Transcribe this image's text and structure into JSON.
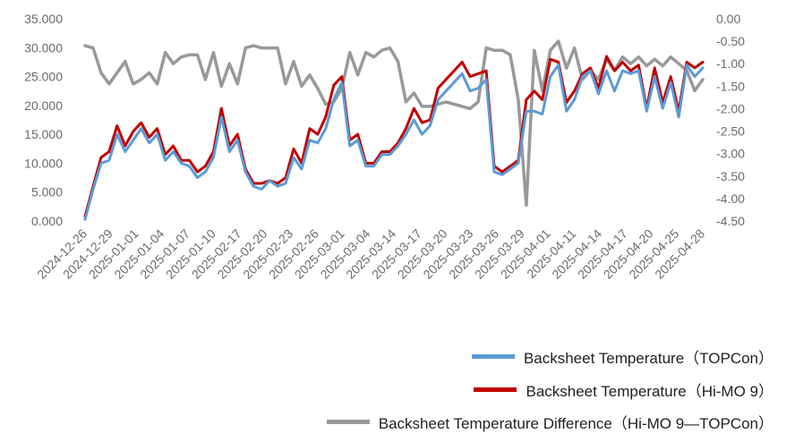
{
  "chart_data": {
    "type": "line",
    "title": "",
    "xlabel": "",
    "ylabel": "",
    "x_ticks": [
      "2024-12-26",
      "2024-12-29",
      "2025-01-01",
      "2025-01-04",
      "2025-01-07",
      "2025-01-10",
      "2025-02-17",
      "2025-02-20",
      "2025-02-23",
      "2025-02-26",
      "2025-03-01",
      "2025-03-04",
      "2025-03-14",
      "2025-03-17",
      "2025-03-20",
      "2025-03-23",
      "2025-03-26",
      "2025-03-29",
      "2025-04-01",
      "2025-04-11",
      "2025-04-14",
      "2025-04-17",
      "2025-04-20",
      "2025-04-25",
      "2025-04-28"
    ],
    "y_left": {
      "lim": [
        0,
        35
      ],
      "ticks": [
        "0.000",
        "5.000",
        "10.000",
        "15.000",
        "20.000",
        "25.000",
        "30.000",
        "35.000"
      ]
    },
    "y_right": {
      "lim": [
        -4.5,
        0
      ],
      "ticks": [
        "0.00",
        "-0.50",
        "-1.00",
        "-1.50",
        "-2.00",
        "-2.50",
        "-3.00",
        "-3.50",
        "-4.00",
        "-4.50"
      ]
    },
    "grid": false,
    "legend_position": "bottom-right",
    "series": [
      {
        "name": "Backsheet  Temperature（TOPCon）",
        "axis": "left",
        "color": "#5b9bd5",
        "values": [
          0.3,
          5.5,
          10,
          10.5,
          15,
          12,
          14,
          16,
          13.5,
          15,
          10.5,
          12,
          10,
          9.5,
          7.5,
          8.5,
          11,
          18,
          12,
          14,
          8.5,
          6,
          5.5,
          7,
          6,
          6.5,
          11,
          9,
          14,
          13.5,
          16,
          21,
          24,
          13,
          14,
          9.5,
          9.5,
          11.5,
          11.5,
          13,
          15,
          17.5,
          15,
          16.5,
          21,
          22.5,
          24,
          25.5,
          22.5,
          23,
          24.5,
          8.5,
          8,
          9,
          10,
          19,
          19,
          18.5,
          25,
          27,
          19,
          21,
          25,
          26,
          22,
          26,
          22.5,
          26,
          25.5,
          26,
          19,
          25,
          19.5,
          24,
          18,
          27,
          25,
          26.5
        ]
      },
      {
        "name": "Backsheet  Temperature（Hi-MO 9）",
        "axis": "left",
        "color": "#c00000",
        "values": [
          0.8,
          6,
          11,
          12,
          16.5,
          13,
          15.5,
          17,
          14.5,
          16,
          11.5,
          13,
          10.5,
          10.5,
          8.5,
          9.5,
          12,
          19.5,
          13,
          15,
          9,
          6.5,
          6.5,
          7,
          6.5,
          7.5,
          12.5,
          10,
          16,
          15,
          18,
          23.5,
          25,
          14,
          15,
          10,
          10,
          12,
          12,
          13.5,
          16,
          19.5,
          17,
          17.5,
          23,
          24.5,
          26,
          27.5,
          25,
          25.5,
          26,
          9.5,
          8.5,
          9.5,
          10.5,
          21,
          22.5,
          21,
          28,
          27.5,
          20.5,
          22.5,
          25.5,
          26.5,
          23,
          28.5,
          26,
          27.5,
          26,
          27,
          19.5,
          26.5,
          20.5,
          25,
          19,
          27.5,
          26.5,
          27.5
        ]
      },
      {
        "name": "Backsheet Temperature Difference（Hi-MO 9—TOPCon）",
        "axis": "right",
        "color": "#999999",
        "values": [
          -0.6,
          -0.65,
          -1.2,
          -1.45,
          -1.2,
          -0.95,
          -1.45,
          -1.35,
          -1.2,
          -1.45,
          -0.75,
          -1.0,
          -0.85,
          -0.8,
          -0.8,
          -1.35,
          -0.75,
          -1.5,
          -1.0,
          -1.45,
          -0.65,
          -0.6,
          -0.65,
          -0.65,
          -0.65,
          -1.45,
          -0.95,
          -1.5,
          -1.25,
          -1.55,
          -1.9,
          -1.85,
          -1.55,
          -0.75,
          -1.25,
          -0.75,
          -0.85,
          -0.7,
          -0.65,
          -0.95,
          -1.85,
          -1.65,
          -1.95,
          -1.95,
          -1.9,
          -1.85,
          -1.9,
          -1.95,
          -2.0,
          -1.85,
          -0.65,
          -0.7,
          -0.7,
          -0.8,
          -1.8,
          -4.15,
          -0.7,
          -1.6,
          -0.7,
          -0.5,
          -1.1,
          -0.65,
          -1.35,
          -1.15,
          -1.35,
          -0.9,
          -1.15,
          -0.85,
          -1.0,
          -0.85,
          -1.05,
          -0.9,
          -1.05,
          -0.85,
          -1.0,
          -1.15,
          -1.6,
          -1.35
        ]
      }
    ]
  }
}
